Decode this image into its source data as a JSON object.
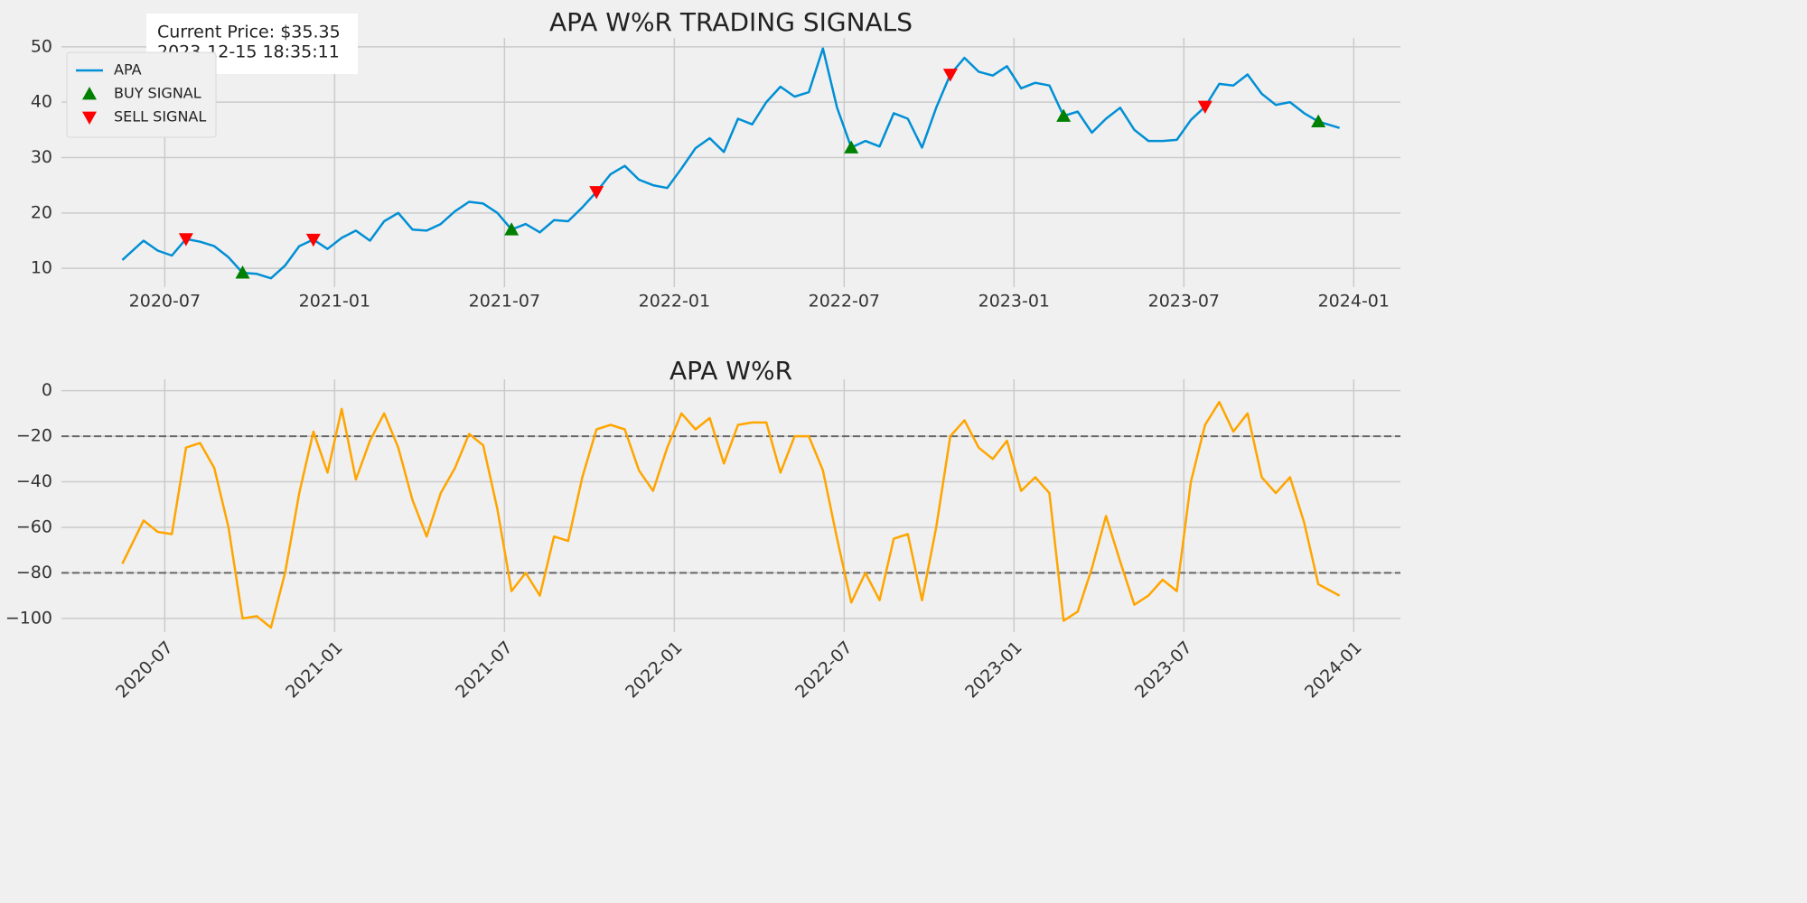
{
  "chart_data": [
    {
      "type": "line",
      "title": "APA W%R TRADING SIGNALS",
      "annotation": [
        "Current Price: $35.35",
        "2023-12-15 18:35:11"
      ],
      "legend": "upper left",
      "grid": true,
      "x": [
        "2020-05",
        "2020-06",
        "2020-06",
        "2020-07",
        "2020-07",
        "2020-08",
        "2020-08",
        "2020-09",
        "2020-09",
        "2020-10",
        "2020-10",
        "2020-11",
        "2020-11",
        "2020-12",
        "2020-12",
        "2021-01",
        "2021-01",
        "2021-02",
        "2021-02",
        "2021-03",
        "2021-03",
        "2021-04",
        "2021-04",
        "2021-05",
        "2021-05",
        "2021-06",
        "2021-06",
        "2021-07",
        "2021-07",
        "2021-08",
        "2021-08",
        "2021-09",
        "2021-09",
        "2021-10",
        "2021-10",
        "2021-11",
        "2021-11",
        "2021-12",
        "2021-12",
        "2022-01",
        "2022-01",
        "2022-02",
        "2022-02",
        "2022-03",
        "2022-03",
        "2022-04",
        "2022-04",
        "2022-05",
        "2022-05",
        "2022-06",
        "2022-06",
        "2022-07",
        "2022-07",
        "2022-08",
        "2022-08",
        "2022-09",
        "2022-09",
        "2022-10",
        "2022-10",
        "2022-11",
        "2022-11",
        "2022-12",
        "2022-12",
        "2023-01",
        "2023-01",
        "2023-02",
        "2023-02",
        "2023-03",
        "2023-03",
        "2023-04",
        "2023-04",
        "2023-05",
        "2023-05",
        "2023-06",
        "2023-06",
        "2023-07",
        "2023-07",
        "2023-08",
        "2023-08",
        "2023-09",
        "2023-09",
        "2023-10",
        "2023-10",
        "2023-11",
        "2023-11",
        "2023-12"
      ],
      "xticks": [
        "2020-07",
        "2021-01",
        "2021-07",
        "2022-01",
        "2022-07",
        "2023-01",
        "2023-07",
        "2024-01"
      ],
      "ylim": [
        6.6,
        51.6
      ],
      "yticks": [
        10,
        20,
        30,
        40,
        50
      ],
      "series": [
        {
          "name": "APA",
          "color": "#008fd5",
          "marker": "none",
          "values": [
            11.5,
            15,
            13.2,
            12.3,
            15.3,
            14.8,
            14,
            12,
            9.2,
            9,
            8.2,
            10.5,
            14,
            15.2,
            13.5,
            15.5,
            16.8,
            15,
            18.5,
            20,
            17,
            16.8,
            18,
            20.3,
            22,
            21.7,
            20,
            17,
            18,
            16.5,
            18.7,
            18.5,
            21,
            23.8,
            27,
            28.5,
            26,
            25,
            24.5,
            28,
            31.7,
            33.5,
            31,
            37,
            36,
            40,
            42.8,
            41,
            41.8,
            49.7,
            39,
            31.8,
            33,
            32,
            38,
            37,
            31.8,
            39,
            45,
            48,
            45.5,
            44.8,
            46.5,
            42.5,
            43.5,
            43,
            37.5,
            38.3,
            34.5,
            37,
            39,
            35,
            33,
            33,
            33.2,
            36.8,
            39.2,
            43.3,
            43,
            45,
            41.5,
            39.5,
            40,
            38,
            36.5,
            35.35
          ]
        },
        {
          "name": "BUY SIGNAL",
          "color": "#008000",
          "marker": "triangle-up",
          "values": [
            null,
            null,
            null,
            null,
            null,
            null,
            null,
            null,
            9.2,
            null,
            null,
            null,
            null,
            null,
            null,
            null,
            null,
            null,
            null,
            null,
            null,
            null,
            null,
            null,
            null,
            null,
            null,
            17,
            null,
            null,
            null,
            null,
            null,
            null,
            null,
            null,
            null,
            null,
            null,
            null,
            null,
            null,
            null,
            null,
            null,
            null,
            null,
            null,
            null,
            null,
            null,
            31.8,
            null,
            null,
            null,
            null,
            null,
            null,
            null,
            null,
            null,
            null,
            null,
            null,
            null,
            null,
            37.5,
            null,
            null,
            null,
            null,
            null,
            null,
            null,
            null,
            null,
            null,
            null,
            null,
            null,
            null,
            null,
            null,
            null,
            36.5,
            null
          ]
        },
        {
          "name": "SELL SIGNAL",
          "color": "#ff0000",
          "marker": "triangle-down",
          "values": [
            null,
            null,
            null,
            null,
            15.3,
            null,
            null,
            null,
            null,
            null,
            null,
            null,
            null,
            15.2,
            null,
            null,
            null,
            null,
            null,
            null,
            null,
            null,
            null,
            null,
            null,
            null,
            null,
            null,
            null,
            null,
            null,
            null,
            null,
            23.8,
            null,
            null,
            null,
            null,
            null,
            null,
            null,
            null,
            null,
            null,
            null,
            null,
            null,
            null,
            null,
            null,
            null,
            null,
            null,
            null,
            null,
            null,
            null,
            null,
            45,
            null,
            null,
            null,
            null,
            null,
            null,
            null,
            null,
            null,
            null,
            null,
            null,
            null,
            null,
            null,
            null,
            null,
            39.2,
            null,
            null,
            null,
            null,
            null,
            null,
            null,
            null,
            null
          ]
        }
      ]
    },
    {
      "type": "line",
      "title": "APA W%R",
      "grid": true,
      "xtick_rotation": 45,
      "x": [
        "2020-05",
        "2020-06",
        "2020-06",
        "2020-07",
        "2020-07",
        "2020-08",
        "2020-08",
        "2020-09",
        "2020-09",
        "2020-10",
        "2020-10",
        "2020-11",
        "2020-11",
        "2020-12",
        "2020-12",
        "2021-01",
        "2021-01",
        "2021-02",
        "2021-02",
        "2021-03",
        "2021-03",
        "2021-04",
        "2021-04",
        "2021-05",
        "2021-05",
        "2021-06",
        "2021-06",
        "2021-07",
        "2021-07",
        "2021-08",
        "2021-08",
        "2021-09",
        "2021-09",
        "2021-10",
        "2021-10",
        "2021-11",
        "2021-11",
        "2021-12",
        "2021-12",
        "2022-01",
        "2022-01",
        "2022-02",
        "2022-02",
        "2022-03",
        "2022-03",
        "2022-04",
        "2022-04",
        "2022-05",
        "2022-05",
        "2022-06",
        "2022-06",
        "2022-07",
        "2022-07",
        "2022-08",
        "2022-08",
        "2022-09",
        "2022-09",
        "2022-10",
        "2022-10",
        "2022-11",
        "2022-11",
        "2022-12",
        "2022-12",
        "2023-01",
        "2023-01",
        "2023-02",
        "2023-02",
        "2023-03",
        "2023-03",
        "2023-04",
        "2023-04",
        "2023-05",
        "2023-05",
        "2023-06",
        "2023-06",
        "2023-07",
        "2023-07",
        "2023-08",
        "2023-08",
        "2023-09",
        "2023-09",
        "2023-10",
        "2023-10",
        "2023-11",
        "2023-11",
        "2023-12"
      ],
      "xticks": [
        "2020-07",
        "2021-01",
        "2021-07",
        "2022-01",
        "2022-07",
        "2023-01",
        "2023-07",
        "2024-01"
      ],
      "ylim": [
        -106,
        5
      ],
      "yticks": [
        {
          "value": -100,
          "label": "−100"
        },
        {
          "value": -80,
          "label": "−80"
        },
        {
          "value": -60,
          "label": "−60"
        },
        {
          "value": -40,
          "label": "−40"
        },
        {
          "value": -20,
          "label": "−20"
        },
        0
      ],
      "hlines": [
        {
          "value": -20,
          "color": "#666666",
          "style": "dashed"
        },
        {
          "value": -80,
          "color": "#666666",
          "style": "dashed"
        }
      ],
      "series": [
        {
          "color": "#ffa500",
          "marker": "none",
          "values": [
            -76,
            -57,
            -62,
            -63,
            -25,
            -23,
            -34,
            -60,
            -100,
            -99,
            -104,
            -80,
            -45,
            -18,
            -36,
            -8,
            -39,
            -22,
            -10,
            -25,
            -48,
            -64,
            -45,
            -34,
            -19,
            -24,
            -52,
            -88,
            -80,
            -90,
            -64,
            -66,
            -38,
            -17,
            -15,
            -17,
            -35,
            -44,
            -25,
            -10,
            -17,
            -12,
            -32,
            -15,
            -14,
            -14,
            -36,
            -20,
            -20,
            -35,
            -65,
            -93,
            -80,
            -92,
            -65,
            -63,
            -92,
            -60,
            -20,
            -13,
            -25,
            -30,
            -22,
            -44,
            -38,
            -45,
            -101,
            -97,
            -78,
            -55,
            -75,
            -94,
            -90,
            -83,
            -88,
            -40,
            -15,
            -5,
            -18,
            -10,
            -38,
            -45,
            -38,
            -58,
            -85,
            -90
          ]
        }
      ]
    }
  ]
}
